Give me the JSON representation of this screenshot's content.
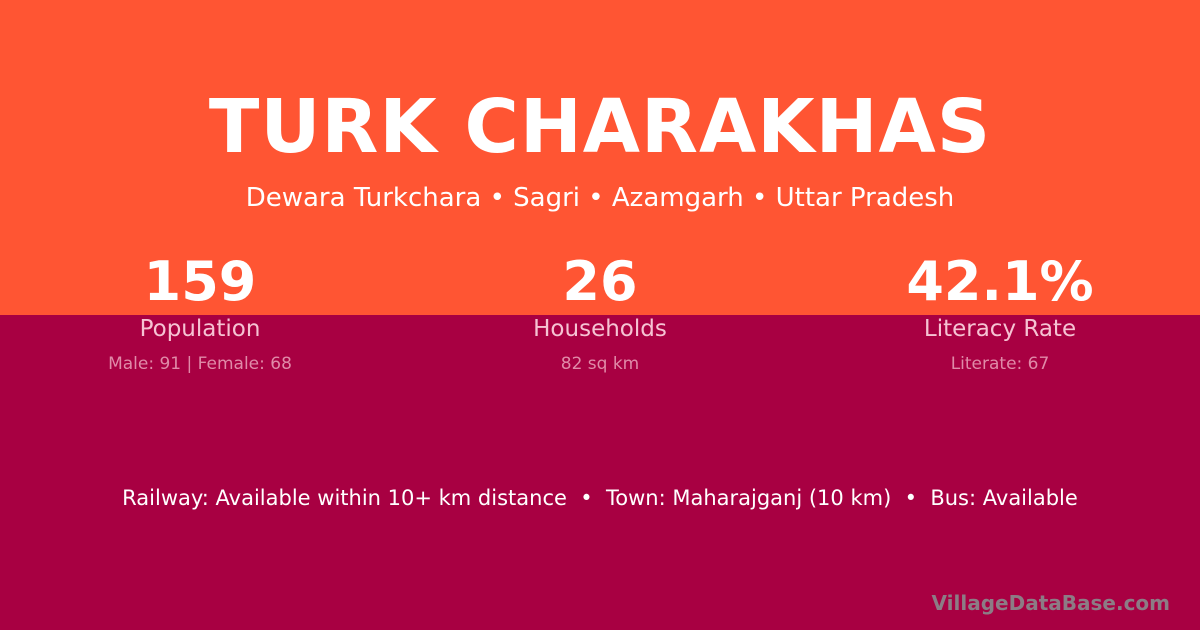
{
  "colors": {
    "top": "#ff5533",
    "bottom": "#a80042"
  },
  "title": "TURK CHARAKHAS",
  "subtitle": "Dewara Turkchara • Sagri • Azamgarh • Uttar Pradesh",
  "stats": [
    {
      "value": "159",
      "label": "Population",
      "note": "Male: 91 | Female: 68"
    },
    {
      "value": "26",
      "label": "Households",
      "note": "82 sq km"
    },
    {
      "value": "42.1%",
      "label": "Literacy Rate",
      "note": "Literate: 67"
    }
  ],
  "info": "Railway: Available within 10+ km distance  •  Town: Maharajganj (10 km)  •  Bus: Available",
  "brand": "VillageDataBase.com"
}
